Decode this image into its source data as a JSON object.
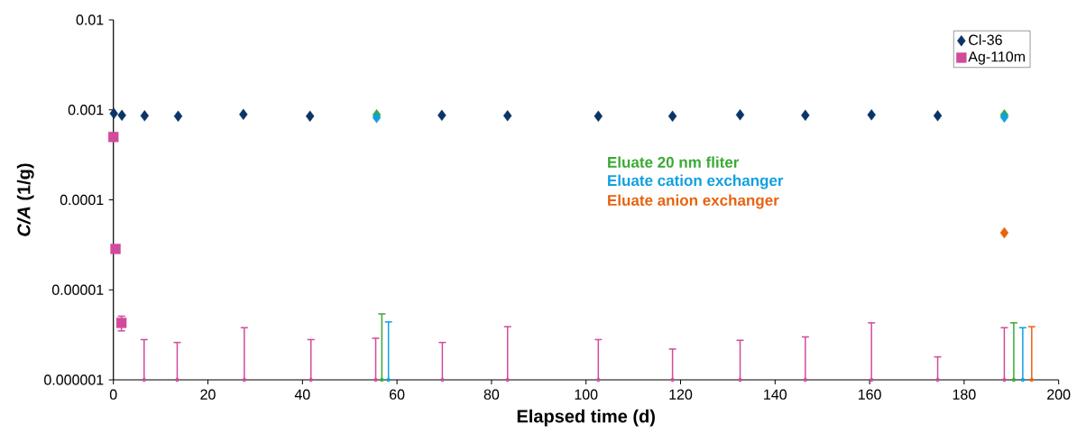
{
  "chart_data": {
    "type": "scatter",
    "xlabel": "Elapsed time (d)",
    "ylabel": "*C/A* (1/g)",
    "log": "y",
    "legend": "top right",
    "xlim": [
      0,
      200
    ],
    "xticks": [
      0,
      20,
      40,
      60,
      80,
      100,
      120,
      140,
      160,
      180,
      200
    ],
    "ylim": [
      1e-06,
      0.01
    ],
    "yticks": [
      {
        "value": 1e-06,
        "label": "0.000001"
      },
      {
        "value": 1e-05,
        "label": "0.00001"
      },
      {
        "value": 0.0001,
        "label": "0.0001"
      },
      {
        "value": 0.001,
        "label": "0.001"
      },
      {
        "value": 0.01,
        "label": "0.01"
      }
    ],
    "series": [
      {
        "name": "Cl-36",
        "color": "#0b3467",
        "marker": "diamond",
        "x": [
          0.1,
          1.8,
          6.6,
          13.7,
          27.5,
          41.6,
          69.5,
          83.4,
          102.6,
          118.3,
          132.6,
          146.4,
          160.4,
          174.4
        ],
        "values": [
          0.00091,
          0.00087,
          0.00086,
          0.00085,
          0.00089,
          0.00085,
          0.00087,
          0.00086,
          0.00085,
          0.00085,
          0.00088,
          0.00087,
          0.00088,
          0.00086
        ]
      },
      {
        "name": "Ag-110m",
        "color": "#d24a9b",
        "marker": "square",
        "x": [
          0.0,
          0.45,
          1.7
        ],
        "values": [
          0.0005,
          2.85e-05,
          4.3e-06
        ],
        "errors": [
          null,
          null,
          [
            3.5e-06,
            5.1e-06
          ]
        ]
      },
      {
        "color": "#d24a9b",
        "marker": "none",
        "x": [
          6.5,
          13.5,
          27.7,
          41.8,
          55.5,
          69.6,
          83.4,
          102.6,
          118.3,
          132.6,
          146.4,
          160.4,
          174.4,
          188.5
        ],
        "values": [
          1e-06,
          1e-06,
          1e-06,
          1e-06,
          1e-06,
          1e-06,
          1e-06,
          1e-06,
          1e-06,
          1e-06,
          1e-06,
          1e-06,
          1e-06,
          1e-06
        ],
        "errors": [
          [
            1e-06,
            2.8e-06
          ],
          [
            1e-06,
            2.6e-06
          ],
          [
            1e-06,
            3.8e-06
          ],
          [
            1e-06,
            2.8e-06
          ],
          [
            1e-06,
            2.9e-06
          ],
          [
            1e-06,
            2.6e-06
          ],
          [
            1e-06,
            3.9e-06
          ],
          [
            1e-06,
            2.8e-06
          ],
          [
            1e-06,
            2.2e-06
          ],
          [
            1e-06,
            2.75e-06
          ],
          [
            1e-06,
            3e-06
          ],
          [
            1e-06,
            4.3e-06
          ],
          [
            1e-06,
            1.8e-06
          ],
          [
            1e-06,
            3.8e-06
          ]
        ]
      },
      {
        "name": "Eluate 20 nm fliter",
        "color": "#3aaa35",
        "marker": "diamond",
        "x": [
          55.7,
          188.5
        ],
        "values": [
          0.00088,
          0.00088
        ]
      },
      {
        "name": "Eluate cation exchanger",
        "color": "#10a0e0",
        "marker": "diamond",
        "x": [
          55.7,
          188.5
        ],
        "values": [
          0.00082,
          0.00083
        ]
      },
      {
        "name": "Eluate anion exchanger",
        "color": "#e8620f",
        "marker": "diamond",
        "x": [
          188.5
        ],
        "values": [
          4.3e-05
        ]
      },
      {
        "color": "#3aaa35",
        "marker": "none",
        "x": [
          56.8,
          190.5
        ],
        "values": [
          1e-06,
          1e-06
        ],
        "errors": [
          [
            1e-06,
            5.4e-06
          ],
          [
            1e-06,
            4.3e-06
          ]
        ]
      },
      {
        "color": "#10a0e0",
        "marker": "none",
        "x": [
          58.2,
          192.4
        ],
        "values": [
          1e-06,
          1e-06
        ],
        "errors": [
          [
            1e-06,
            4.4e-06
          ],
          [
            1e-06,
            3.8e-06
          ]
        ]
      },
      {
        "color": "#e8620f",
        "marker": "none",
        "x": [
          194.3
        ],
        "values": [
          1e-06
        ],
        "errors": [
          [
            1e-06,
            3.9e-06
          ]
        ]
      }
    ]
  }
}
